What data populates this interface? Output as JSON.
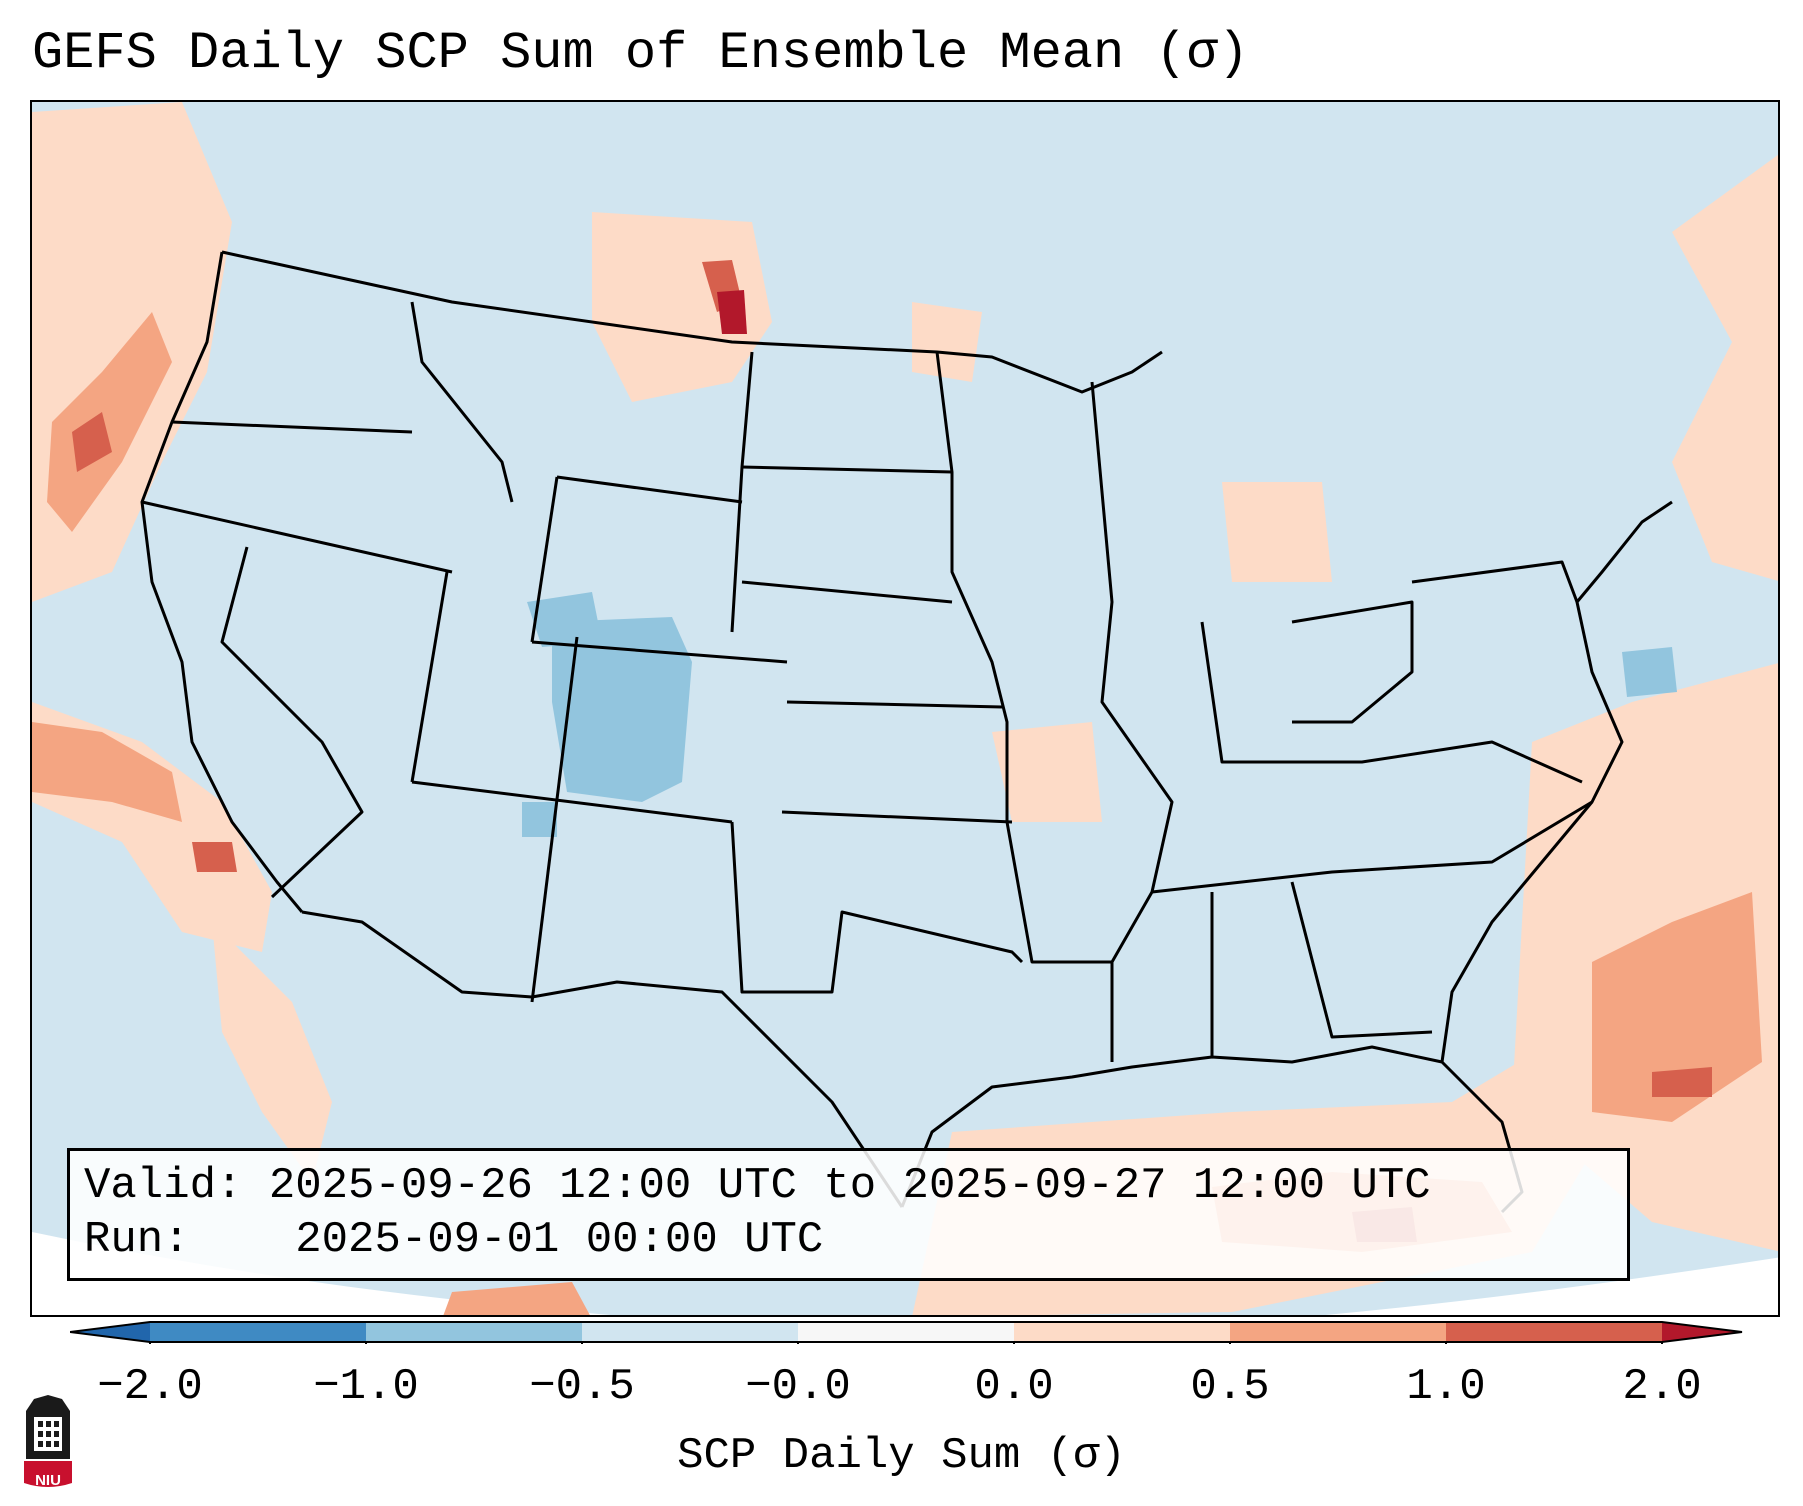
{
  "title": "GEFS Daily SCP Sum of Ensemble Mean (σ)",
  "info": {
    "valid_label": "Valid:",
    "valid_value": "2025-09-26 12:00 UTC to 2025-09-27 12:00 UTC",
    "run_label": "Run:",
    "run_value": "2025-09-01 00:00 UTC"
  },
  "colorbar": {
    "label": "SCP Daily Sum (σ)",
    "ticks": [
      "−2.0",
      "−1.0",
      "−0.5",
      "−0.0",
      "0.0",
      "0.5",
      "1.0",
      "2.0"
    ],
    "colors": [
      "#3f8ac3",
      "#92c5de",
      "#d1e5f0",
      "#f7f7f7",
      "#fddbc7",
      "#f4a582",
      "#d6604d"
    ],
    "extend_low_color": "#2166ac",
    "extend_high_color": "#b2182b"
  },
  "map": {
    "background_color": "#d1e5f0",
    "projection_edge_color": "#ffffff",
    "anomaly_regions": [
      {
        "name": "Pacific Northwest coast",
        "value": 0.6
      },
      {
        "name": "Southern California offshore",
        "value": 0.9
      },
      {
        "name": "North Dakota / Montana border",
        "value": 1.8
      },
      {
        "name": "Colorado Rockies",
        "value": -0.7
      },
      {
        "name": "Gulf of Mexico / Florida",
        "value": 0.6
      },
      {
        "name": "Western Atlantic",
        "value": 0.7
      },
      {
        "name": "Gulf of Maine",
        "value": 0.5
      }
    ]
  },
  "logo": {
    "text": "NIU"
  }
}
